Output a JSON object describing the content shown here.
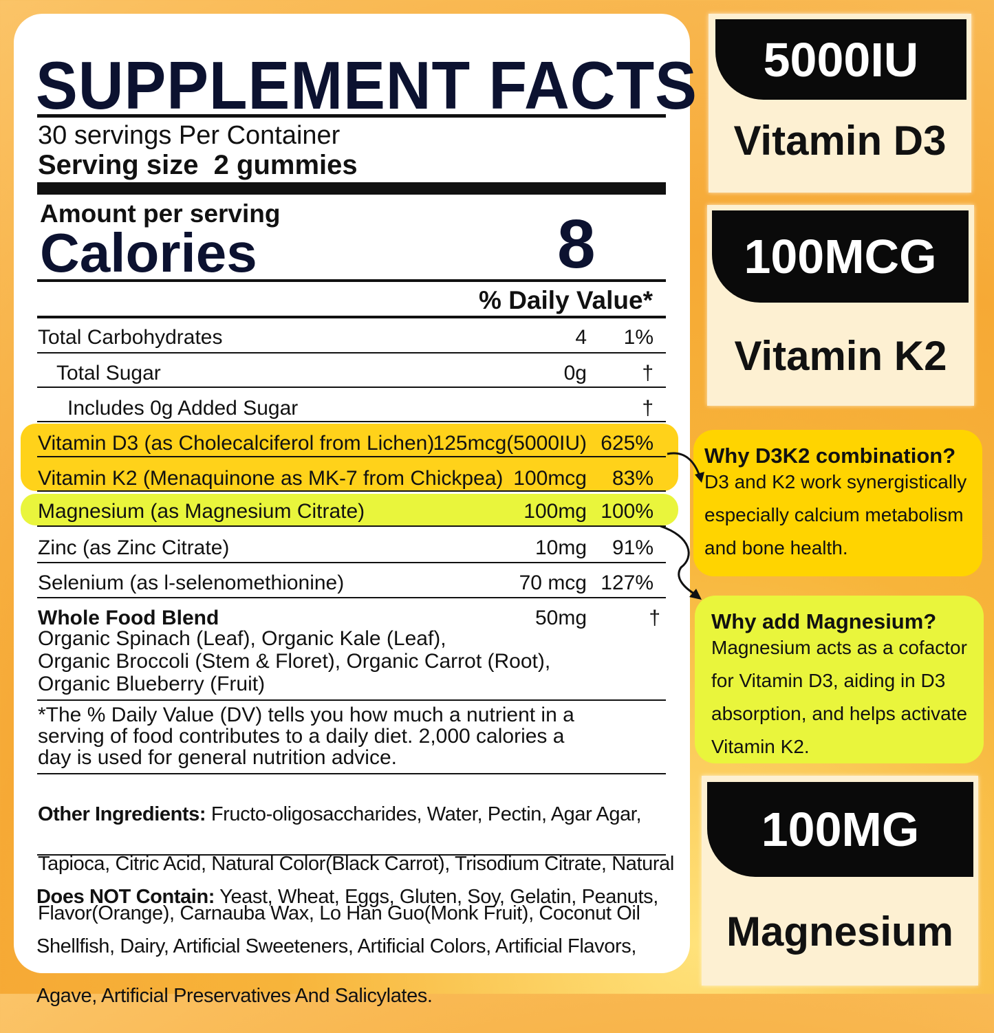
{
  "label": {
    "title": "SUPPLEMENT FACTS",
    "servings": "30 servings Per Container",
    "serving_size": "Serving size  2 gummies",
    "amount_per_serving": "Amount per serving",
    "calories_label": "Calories",
    "calories_value": "8",
    "dv_header": "% Daily Value*",
    "rows": [
      {
        "name": "Total Carbohydrates",
        "amount": "4",
        "dv": "1%"
      },
      {
        "name": "Total Sugar",
        "amount": "0g",
        "dv": "†"
      },
      {
        "name": "Includes 0g Added Sugar",
        "amount": "",
        "dv": "†"
      },
      {
        "name": "Vitamin D3 (as Cholecalciferol from Lichen)",
        "amount": "125mcg(5000IU)",
        "dv": "625%"
      },
      {
        "name": "Vitamin K2 (Menaquinone as MK-7 from Chickpea)",
        "amount": "100mcg",
        "dv": "83%"
      },
      {
        "name": "Magnesium (as Magnesium Citrate)",
        "amount": "100mg",
        "dv": "100%"
      },
      {
        "name": "Zinc (as Zinc Citrate)",
        "amount": "10mg",
        "dv": "91%"
      },
      {
        "name": "Selenium (as l-selenomethionine)",
        "amount": "70 mcg",
        "dv": "127%"
      }
    ],
    "blend": {
      "name": "Whole Food Blend",
      "amount": "50mg",
      "dv": "†",
      "lines": [
        "Organic Spinach (Leaf), Organic Kale (Leaf),",
        "Organic Broccoli (Stem & Floret), Organic Carrot (Root),",
        "Organic Blueberry (Fruit)"
      ]
    },
    "footnote": [
      "*The % Daily Value (DV) tells you how much a nutrient in a",
      "serving of food contributes to a daily diet. 2,000 calories a",
      "day is used for general nutrition advice."
    ],
    "other_label": "Other Ingredients:",
    "other_lines": [
      " Fructo-oligosaccharides, Water, Pectin, Agar Agar,",
      "Tapioca, Citric Acid, Natural Color(Black Carrot), Trisodium Citrate, Natural",
      "Flavor(Orange), Carnauba Wax, Lo Han Guo(Monk Fruit), Coconut Oil"
    ],
    "not_label": "Does NOT Contain:",
    "not_lines": [
      " Yeast, Wheat, Eggs, Gluten, Soy, Gelatin, Peanuts,",
      "Shellfish, Dairy, Artificial Sweeteners, Artificial Colors, Artificial Flavors,",
      "Agave, Artificial Preservatives And Salicylates."
    ]
  },
  "badges": [
    {
      "dose": "5000IU",
      "name": "Vitamin D3"
    },
    {
      "dose": "100MCG",
      "name": "Vitamin K2"
    },
    {
      "dose": "100MG",
      "name": "Magnesium"
    }
  ],
  "callouts": [
    {
      "title": "Why D3K2 combination?",
      "lines": [
        "D3 and K2 work synergistically",
        "especially calcium metabolism",
        "and bone health."
      ]
    },
    {
      "title": "Why add Magnesium?",
      "lines": [
        "Magnesium acts as a cofactor",
        "for Vitamin D3, aiding in D3",
        "absorption, and helps activate",
        "Vitamin K2."
      ]
    }
  ],
  "colors": {
    "d3k2_highlight": "#ffd21a",
    "magnesium_highlight": "#e9f53c",
    "title": "#0c1230"
  }
}
